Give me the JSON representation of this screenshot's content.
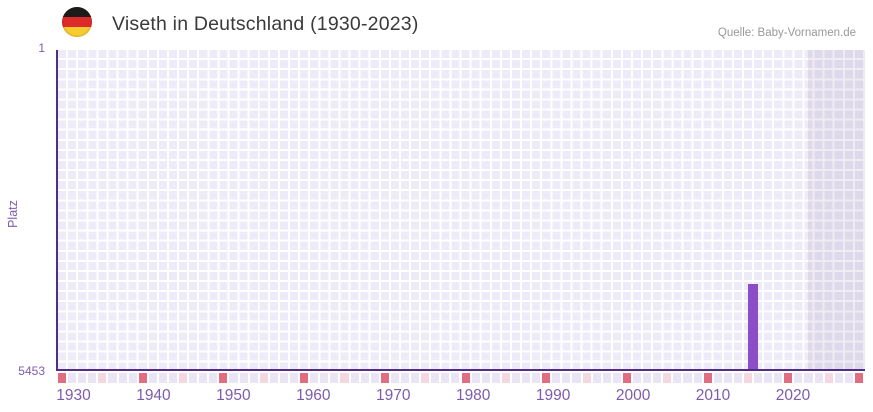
{
  "header": {
    "title": "Viseth in Deutschland (1930-2023)",
    "source": "Quelle: Baby-Vornamen.de",
    "flag_icon": {
      "name": "germany-flag-roundel",
      "colors": [
        "#1e1c1a",
        "#dd2b2b",
        "#f8cb2e"
      ]
    }
  },
  "chart_data": {
    "type": "bar",
    "title": "Viseth in Deutschland (1930-2023)",
    "xlabel": "",
    "ylabel": "Platz",
    "y_axis": {
      "ticks": [
        "1",
        "5453"
      ],
      "min": 1,
      "max": 5453,
      "inverted": true
    },
    "x_ticks": [
      "1930",
      "1940",
      "1950",
      "1960",
      "1970",
      "1980",
      "1990",
      "2000",
      "2010",
      "2020"
    ],
    "x_range_years": [
      1930,
      2023
    ],
    "series": [
      {
        "name": "Viseth",
        "points": [
          {
            "year": 2015,
            "rank": 4000
          }
        ]
      }
    ],
    "grid": "on",
    "legend": "none",
    "colors": {
      "bar": "#8a4fc7",
      "axis_line": "#522d87",
      "axis_labels": "#7d5caa",
      "plot_cell": "#edebf8",
      "grid_line": "#ffffff"
    },
    "shaded_region": {
      "start_pct": 92.9,
      "color": "rgba(60,40,100,0.085)"
    },
    "axis_strip": {
      "cell_count": 80,
      "cell_color": "#e9e5f4",
      "dark_mark_color": "#e06e80",
      "light_mark_color": "#f5d7e1",
      "mark_every_cells": 4,
      "dark_every_cells": 8,
      "last_cell_dark": true
    }
  }
}
